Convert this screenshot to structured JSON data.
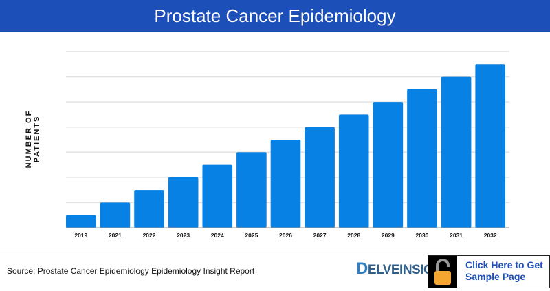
{
  "header": {
    "title": "Prostate Cancer Epidemiology"
  },
  "chart_data": {
    "type": "bar",
    "title": "Prostate Cancer Epidemiology",
    "ylabel": "NUMBER OF PATIENTS",
    "xlabel": "",
    "categories": [
      "2019",
      "2021",
      "2022",
      "2023",
      "2024",
      "2025",
      "2026",
      "2027",
      "2028",
      "2029",
      "2030",
      "2031",
      "2032"
    ],
    "values": [
      0.5,
      1,
      1.5,
      2,
      2.5,
      3,
      3.5,
      4,
      4.5,
      5,
      5.5,
      6,
      6.5
    ],
    "ylim": [
      0,
      7
    ],
    "grid": true,
    "y_tick_labels_shown": false,
    "bar_color": "#0781e3"
  },
  "footer": {
    "source": "Source: Prostate Cancer Epidemiology Epidemiology Insight Report",
    "logo": "DELVEINSIGHT",
    "cta_line1": "Click Here to Get",
    "cta_line2": "Sample Page",
    "cta_icon": "unlock-icon"
  }
}
